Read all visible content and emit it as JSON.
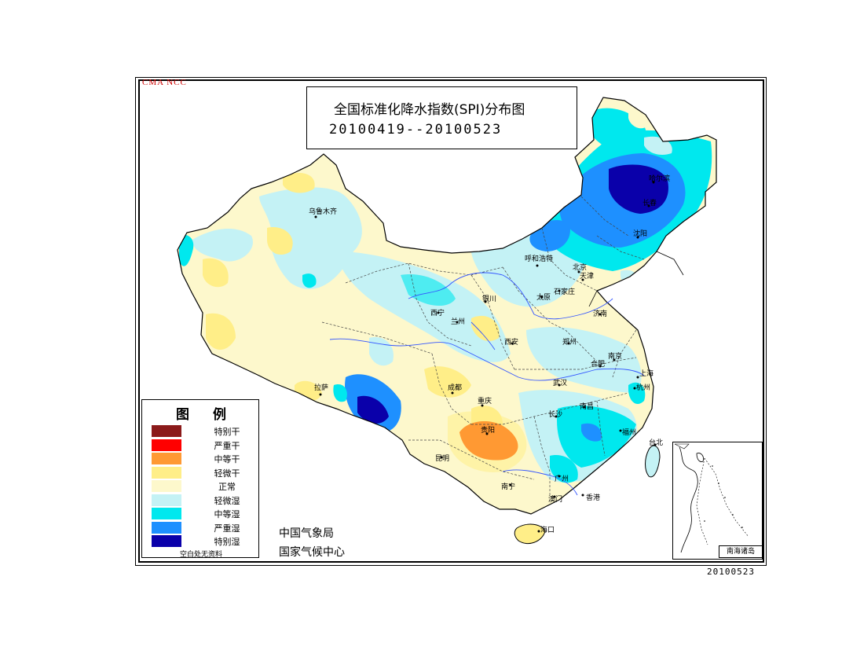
{
  "header": {
    "agency_code": "CMA  NCC"
  },
  "title": {
    "line1": "全国标准化降水指数(SPI)分布图",
    "line2": "20100419--20100523"
  },
  "legend": {
    "title": "图例",
    "items": [
      {
        "label": "特别干",
        "color": "#8b1a1a"
      },
      {
        "label": "严重干",
        "color": "#ff0000"
      },
      {
        "label": "中等干",
        "color": "#ff9933"
      },
      {
        "label": "轻微干",
        "color": "#ffee88"
      },
      {
        "label": "正常",
        "color": "#fdf8cc"
      },
      {
        "label": "轻微湿",
        "color": "#c4f2f5"
      },
      {
        "label": "中等湿",
        "color": "#00e8ee"
      },
      {
        "label": "严重湿",
        "color": "#1e90ff"
      },
      {
        "label": "特别湿",
        "color": "#0a00aa"
      }
    ],
    "note": "空白处无资料"
  },
  "agency": {
    "line1": "中国气象局",
    "line2": "国家气候中心"
  },
  "inset": {
    "label": "南海诸岛"
  },
  "footer": {
    "date": "20100523"
  },
  "cities": [
    "乌鲁木齐",
    "哈尔滨",
    "长春",
    "沈阳",
    "呼和浩特",
    "北京",
    "天津",
    "太原",
    "石家庄",
    "银川",
    "西宁",
    "兰州",
    "济南",
    "西安",
    "郑州",
    "合肥",
    "南京",
    "上海",
    "拉萨",
    "成都",
    "武汉",
    "杭州",
    "重庆",
    "长沙",
    "南昌",
    "福州",
    "贵阳",
    "台北",
    "昆明",
    "广州",
    "南宁",
    "澳门",
    "香港",
    "海口"
  ]
}
